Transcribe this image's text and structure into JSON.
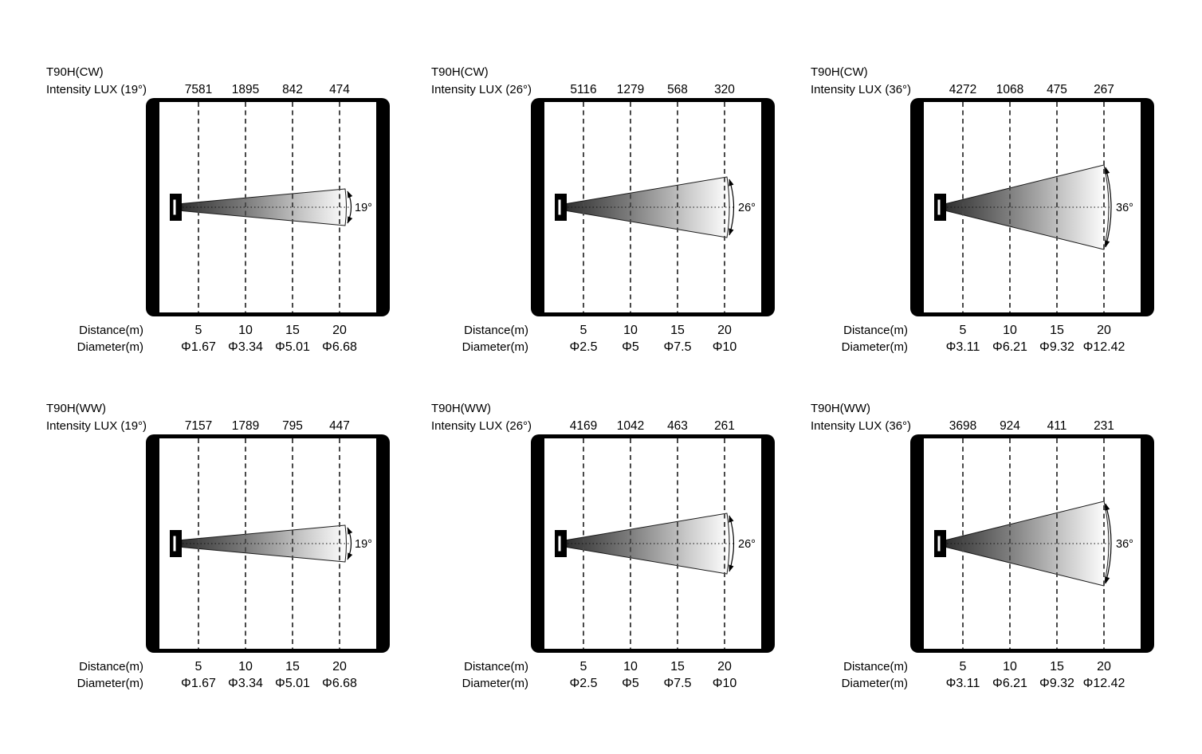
{
  "colors": {
    "ink": "#000000",
    "grid": "#4a4a4a",
    "background": "#ffffff"
  },
  "axis": {
    "distance_label": "Distance(m)",
    "diameter_label": "Diameter(m)",
    "distances": [
      "5",
      "10",
      "15",
      "20"
    ]
  },
  "panels": [
    {
      "title": "T90H(CW)",
      "subtitle": "Intensity LUX (19°)",
      "beam_angle_deg": 19,
      "beam_angle_label": "19°",
      "intensity_lux": [
        "7581",
        "1895",
        "842",
        "474"
      ],
      "diameters": [
        "Φ1.67",
        "Φ3.34",
        "Φ5.01",
        "Φ6.68"
      ]
    },
    {
      "title": "T90H(CW)",
      "subtitle": "Intensity LUX (26°)",
      "beam_angle_deg": 26,
      "beam_angle_label": "26°",
      "intensity_lux": [
        "5116",
        "1279",
        "568",
        "320"
      ],
      "diameters": [
        "Φ2.5",
        "Φ5",
        "Φ7.5",
        "Φ10"
      ]
    },
    {
      "title": "T90H(CW)",
      "subtitle": "Intensity LUX (36°)",
      "beam_angle_deg": 36,
      "beam_angle_label": "36°",
      "intensity_lux": [
        "4272",
        "1068",
        "475",
        "267"
      ],
      "diameters": [
        "Φ3.11",
        "Φ6.21",
        "Φ9.32",
        "Φ12.42"
      ]
    },
    {
      "title": "T90H(WW)",
      "subtitle": "Intensity LUX (19°)",
      "beam_angle_deg": 19,
      "beam_angle_label": "19°",
      "intensity_lux": [
        "7157",
        "1789",
        "795",
        "447"
      ],
      "diameters": [
        "Φ1.67",
        "Φ3.34",
        "Φ5.01",
        "Φ6.68"
      ]
    },
    {
      "title": "T90H(WW)",
      "subtitle": "Intensity LUX (26°)",
      "beam_angle_deg": 26,
      "beam_angle_label": "26°",
      "intensity_lux": [
        "4169",
        "1042",
        "463",
        "261"
      ],
      "diameters": [
        "Φ2.5",
        "Φ5",
        "Φ7.5",
        "Φ10"
      ]
    },
    {
      "title": "T90H(WW)",
      "subtitle": "Intensity LUX (36°)",
      "beam_angle_deg": 36,
      "beam_angle_label": "36°",
      "intensity_lux": [
        "3698",
        "924",
        "411",
        "231"
      ],
      "diameters": [
        "Φ3.11",
        "Φ6.21",
        "Φ9.32",
        "Φ12.42"
      ]
    }
  ],
  "chart_data": [
    {
      "type": "line",
      "title": "T90H(CW) Intensity LUX (19°)",
      "xlabel": "Distance(m)",
      "x": [
        5,
        10,
        15,
        20
      ],
      "series": [
        {
          "name": "Intensity LUX",
          "values": [
            7581,
            1895,
            842,
            474
          ]
        },
        {
          "name": "Beam diameter (m)",
          "values": [
            1.67,
            3.34,
            5.01,
            6.68
          ]
        }
      ],
      "beam_angle_deg": 19
    },
    {
      "type": "line",
      "title": "T90H(CW) Intensity LUX (26°)",
      "xlabel": "Distance(m)",
      "x": [
        5,
        10,
        15,
        20
      ],
      "series": [
        {
          "name": "Intensity LUX",
          "values": [
            5116,
            1279,
            568,
            320
          ]
        },
        {
          "name": "Beam diameter (m)",
          "values": [
            2.5,
            5,
            7.5,
            10
          ]
        }
      ],
      "beam_angle_deg": 26
    },
    {
      "type": "line",
      "title": "T90H(CW) Intensity LUX (36°)",
      "xlabel": "Distance(m)",
      "x": [
        5,
        10,
        15,
        20
      ],
      "series": [
        {
          "name": "Intensity LUX",
          "values": [
            4272,
            1068,
            475,
            267
          ]
        },
        {
          "name": "Beam diameter (m)",
          "values": [
            3.11,
            6.21,
            9.32,
            12.42
          ]
        }
      ],
      "beam_angle_deg": 36
    },
    {
      "type": "line",
      "title": "T90H(WW) Intensity LUX (19°)",
      "xlabel": "Distance(m)",
      "x": [
        5,
        10,
        15,
        20
      ],
      "series": [
        {
          "name": "Intensity LUX",
          "values": [
            7157,
            1789,
            795,
            447
          ]
        },
        {
          "name": "Beam diameter (m)",
          "values": [
            1.67,
            3.34,
            5.01,
            6.68
          ]
        }
      ],
      "beam_angle_deg": 19
    },
    {
      "type": "line",
      "title": "T90H(WW) Intensity LUX (26°)",
      "xlabel": "Distance(m)",
      "x": [
        5,
        10,
        15,
        20
      ],
      "series": [
        {
          "name": "Intensity LUX",
          "values": [
            4169,
            1042,
            463,
            261
          ]
        },
        {
          "name": "Beam diameter (m)",
          "values": [
            2.5,
            5,
            7.5,
            10
          ]
        }
      ],
      "beam_angle_deg": 26
    },
    {
      "type": "line",
      "title": "T90H(WW) Intensity LUX (36°)",
      "xlabel": "Distance(m)",
      "x": [
        5,
        10,
        15,
        20
      ],
      "series": [
        {
          "name": "Intensity LUX",
          "values": [
            3698,
            924,
            411,
            231
          ]
        },
        {
          "name": "Beam diameter (m)",
          "values": [
            3.11,
            6.21,
            9.32,
            12.42
          ]
        }
      ],
      "beam_angle_deg": 36
    }
  ]
}
